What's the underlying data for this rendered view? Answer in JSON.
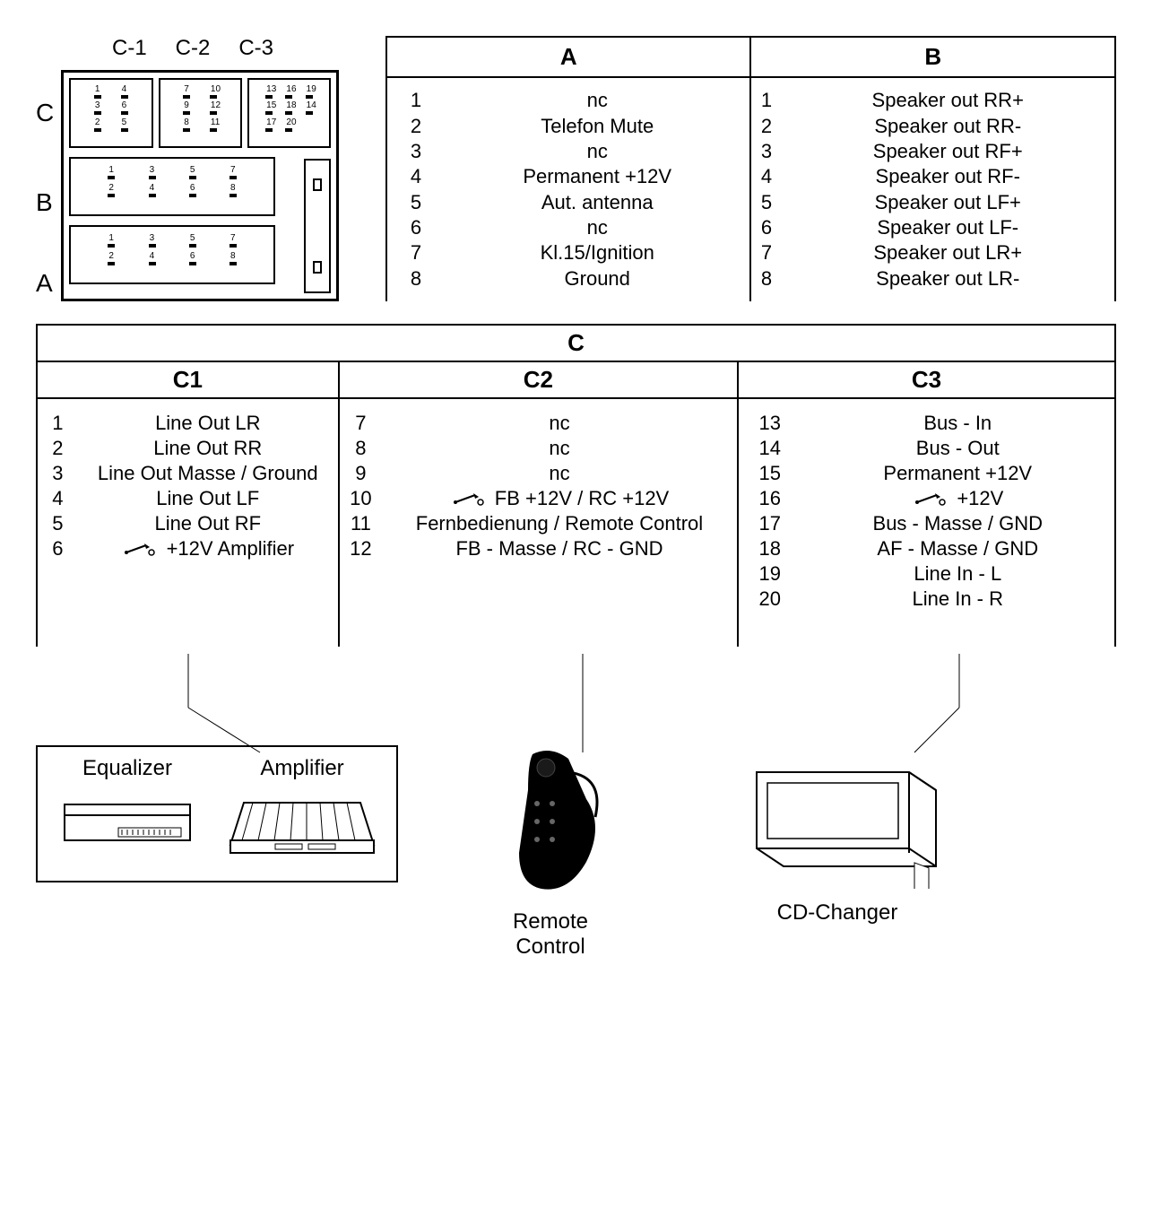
{
  "colors": {
    "fg": "#000000",
    "bg": "#ffffff"
  },
  "font": {
    "family": "Arial",
    "size_body": 22,
    "size_header": 26,
    "size_rowlabel": 28
  },
  "connector": {
    "top_labels": [
      "C-1",
      "C-2",
      "C-3"
    ],
    "row_labels": [
      "C",
      "B",
      "A"
    ],
    "sections": {
      "C1": {
        "pins": [
          "1",
          "4",
          "3",
          "6",
          "2",
          "5"
        ]
      },
      "C2": {
        "pins": [
          "7",
          "10",
          "9",
          "12",
          "8",
          "11"
        ]
      },
      "C3": {
        "pins": [
          "13",
          "16",
          "19",
          "15",
          "18",
          "14",
          "17",
          "20"
        ]
      },
      "B": {
        "pins": [
          "1",
          "3",
          "5",
          "7",
          "2",
          "4",
          "6",
          "8"
        ]
      },
      "A": {
        "pins": [
          "1",
          "3",
          "5",
          "7",
          "2",
          "4",
          "6",
          "8"
        ]
      }
    }
  },
  "table_A": {
    "header": "A",
    "rows": [
      {
        "n": "1",
        "d": "nc"
      },
      {
        "n": "2",
        "d": "Telefon Mute"
      },
      {
        "n": "3",
        "d": "nc"
      },
      {
        "n": "4",
        "d": "Permanent +12V"
      },
      {
        "n": "5",
        "d": "Aut. antenna"
      },
      {
        "n": "6",
        "d": "nc"
      },
      {
        "n": "7",
        "d": "Kl.15/Ignition"
      },
      {
        "n": "8",
        "d": "Ground"
      }
    ]
  },
  "table_B": {
    "header": "B",
    "rows": [
      {
        "n": "1",
        "d": "Speaker out RR+"
      },
      {
        "n": "2",
        "d": "Speaker out RR-"
      },
      {
        "n": "3",
        "d": "Speaker out RF+"
      },
      {
        "n": "4",
        "d": "Speaker out RF-"
      },
      {
        "n": "5",
        "d": "Speaker out LF+"
      },
      {
        "n": "6",
        "d": "Speaker out LF-"
      },
      {
        "n": "7",
        "d": "Speaker out LR+"
      },
      {
        "n": "8",
        "d": "Speaker out LR-"
      }
    ]
  },
  "table_C": {
    "header": "C",
    "sub": [
      {
        "header": "C1",
        "rows": [
          {
            "n": "1",
            "d": "Line Out LR"
          },
          {
            "n": "2",
            "d": "Line Out RR"
          },
          {
            "n": "3",
            "d": "Line Out Masse / Ground"
          },
          {
            "n": "4",
            "d": "Line Out LF"
          },
          {
            "n": "5",
            "d": "Line Out RF"
          },
          {
            "n": "6",
            "d": "+12V Amplifier",
            "switch": true
          }
        ]
      },
      {
        "header": "C2",
        "rows": [
          {
            "n": "7",
            "d": "nc"
          },
          {
            "n": "8",
            "d": "nc"
          },
          {
            "n": "9",
            "d": "nc"
          },
          {
            "n": "10",
            "d": "FB +12V  / RC +12V",
            "switch": true
          },
          {
            "n": "11",
            "d": "Fernbedienung / Remote Control"
          },
          {
            "n": "12",
            "d": "FB - Masse / RC - GND"
          }
        ]
      },
      {
        "header": "C3",
        "rows": [
          {
            "n": "13",
            "d": "Bus - In"
          },
          {
            "n": "14",
            "d": "Bus - Out"
          },
          {
            "n": "15",
            "d": "Permanent +12V"
          },
          {
            "n": "16",
            "d": "+12V",
            "switch": true
          },
          {
            "n": "17",
            "d": "Bus - Masse / GND"
          },
          {
            "n": "18",
            "d": "AF  - Masse / GND"
          },
          {
            "n": "19",
            "d": "Line In - L"
          },
          {
            "n": "20",
            "d": "Line In - R"
          }
        ]
      }
    ]
  },
  "devices": {
    "box1": {
      "items": [
        {
          "label": "Equalizer"
        },
        {
          "label": "Amplifier"
        }
      ]
    },
    "remote": {
      "label": "Remote\nControl"
    },
    "cd": {
      "label": "CD-Changer"
    }
  },
  "connections": {
    "lines": [
      {
        "from": "C1",
        "to": "equalizer-amplifier-box"
      },
      {
        "from": "C2",
        "to": "remote-control"
      },
      {
        "from": "C3",
        "to": "cd-changer"
      }
    ],
    "stroke": "#000000",
    "width": 1
  }
}
